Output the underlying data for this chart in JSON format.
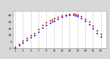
{
  "background_color": "#d8d8d8",
  "plot_bg_color": "#ffffff",
  "grid_color": "#b0b0b0",
  "xlim": [
    0.5,
    24.5
  ],
  "ylim": [
    -5,
    52
  ],
  "x_ticks": [
    1,
    3,
    5,
    7,
    9,
    11,
    13,
    15,
    17,
    19,
    21,
    23
  ],
  "x_labels": [
    "1",
    "3",
    "5",
    "7",
    "9",
    "11",
    "13",
    "15",
    "17",
    "19",
    "21",
    "23"
  ],
  "y_ticks": [
    -5,
    5,
    15,
    25,
    35,
    45
  ],
  "y_labels": [
    "-5",
    "5",
    "15",
    "25",
    "35",
    "45"
  ],
  "outdoor_temp": [
    [
      1,
      -3
    ],
    [
      2,
      2
    ],
    [
      3,
      7
    ],
    [
      4,
      11
    ],
    [
      5,
      15
    ],
    [
      6,
      18
    ],
    [
      7,
      24
    ],
    [
      8,
      30
    ],
    [
      9,
      34
    ],
    [
      10,
      37
    ],
    [
      10.5,
      38
    ],
    [
      11,
      40
    ],
    [
      12,
      42
    ],
    [
      13,
      44
    ],
    [
      14,
      46
    ],
    [
      15,
      47
    ],
    [
      16,
      48
    ],
    [
      16.5,
      47
    ],
    [
      17,
      46
    ],
    [
      18,
      43
    ],
    [
      19,
      39
    ],
    [
      20,
      35
    ],
    [
      21,
      29
    ],
    [
      22,
      22
    ],
    [
      23,
      17
    ]
  ],
  "wind_chill": [
    [
      1,
      -5
    ],
    [
      2,
      -1
    ],
    [
      3,
      4
    ],
    [
      4,
      8
    ],
    [
      5,
      12
    ],
    [
      6,
      15
    ],
    [
      7,
      20
    ],
    [
      8,
      26
    ],
    [
      9,
      30
    ],
    [
      10,
      33
    ],
    [
      10.5,
      35
    ],
    [
      11,
      36
    ],
    [
      12,
      39
    ],
    [
      13,
      42
    ],
    [
      14,
      44
    ],
    [
      15,
      45
    ],
    [
      16,
      45
    ],
    [
      16.5,
      44
    ],
    [
      17,
      43
    ],
    [
      18,
      40
    ],
    [
      19,
      36
    ],
    [
      20,
      31
    ],
    [
      21,
      25
    ],
    [
      22,
      18
    ],
    [
      23,
      13
    ]
  ],
  "outdoor_color": "#cc0000",
  "wind_chill_color": "#0000cc",
  "dot_size": 2.5,
  "legend_wc_label": "Wind Chill",
  "legend_ot_label": "Outdoor Temp",
  "title_fontsize": 3.5,
  "tick_fontsize": 3,
  "legend_fontsize": 2.8
}
